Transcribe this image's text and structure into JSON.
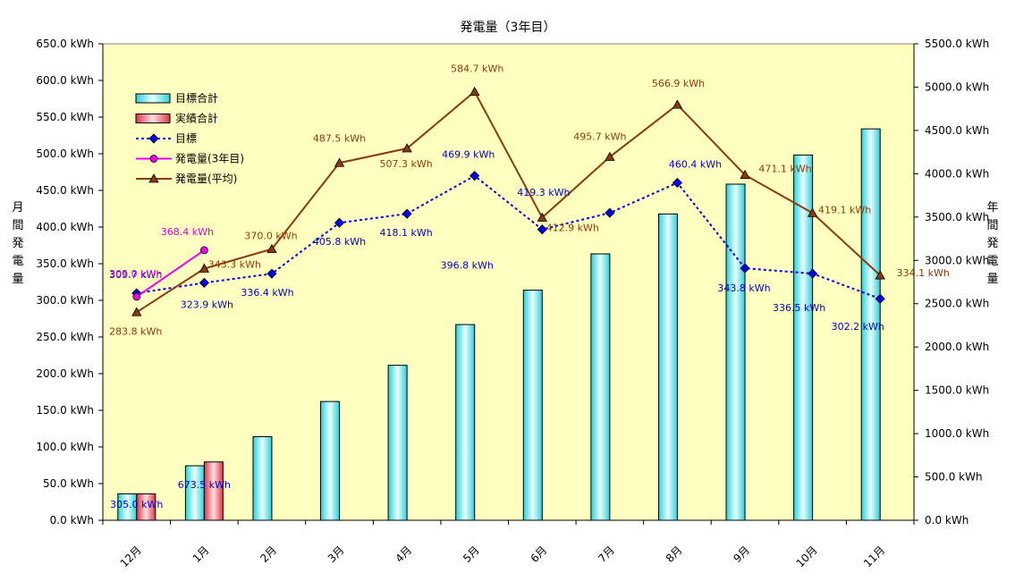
{
  "chart_data": {
    "type": "bar+line",
    "title": "発電量（3年目）",
    "left_axis_title": "月間発電量",
    "right_axis_title": "年間発電量",
    "categories": [
      "12月",
      "1月",
      "2月",
      "3月",
      "4月",
      "5月",
      "6月",
      "7月",
      "8月",
      "9月",
      "10月",
      "11月"
    ],
    "left_axis": {
      "min": 0,
      "max": 650,
      "step": 50,
      "ticks": [
        "0.0 kWh",
        "50.0 kWh",
        "100.0 kWh",
        "150.0 kWh",
        "200.0 kWh",
        "250.0 kWh",
        "300.0 kWh",
        "350.0 kWh",
        "400.0 kWh",
        "450.0 kWh",
        "500.0 kWh",
        "550.0 kWh",
        "600.0 kWh",
        "650.0 kWh"
      ]
    },
    "right_axis": {
      "min": 0,
      "max": 5500,
      "step": 500,
      "ticks": [
        "0.0 kWh",
        "500.0 kWh",
        "1000.0 kWh",
        "1500.0 kWh",
        "2000.0 kWh",
        "2500.0 kWh",
        "3000.0 kWh",
        "3500.0 kWh",
        "4000.0 kWh",
        "4500.0 kWh",
        "5000.0 kWh",
        "5500.0 kWh"
      ]
    },
    "legend_position": "top-left",
    "series": [
      {
        "name": "目標合計",
        "kind": "bar",
        "axis": "right",
        "color": "#33d6e0",
        "values": [
          305.0,
          629,
          965,
          1371,
          1789,
          2259,
          2656,
          3075,
          3536,
          3880,
          4216,
          4518
        ]
      },
      {
        "name": "実績合計",
        "kind": "bar",
        "axis": "right",
        "color": "#e05060",
        "values": [
          305.0,
          673.5,
          null,
          null,
          null,
          null,
          null,
          null,
          null,
          null,
          null,
          null
        ]
      },
      {
        "name": "目標",
        "kind": "line",
        "style": "dotted",
        "axis": "left",
        "color": "#0000ee",
        "marker": "diamond",
        "values": [
          309.7,
          323.9,
          336.4,
          405.8,
          418.1,
          469.9,
          396.8,
          419.3,
          460.4,
          343.8,
          336.5,
          302.2
        ]
      },
      {
        "name": "発電量(3年目)",
        "kind": "line",
        "axis": "left",
        "color": "#ee00ee",
        "marker": "circle",
        "values": [
          305.0,
          368.4,
          null,
          null,
          null,
          null,
          null,
          null,
          null,
          null,
          null,
          null
        ]
      },
      {
        "name": "発電量(平均)",
        "kind": "line",
        "axis": "left",
        "color": "#8b3a0a",
        "marker": "triangle",
        "values": [
          283.8,
          343.3,
          370.0,
          487.5,
          507.3,
          584.7,
          412.9,
          495.7,
          566.9,
          471.1,
          419.1,
          334.1
        ]
      }
    ],
    "data_labels": {
      "目標": [
        "309.7 kWh",
        "323.9 kWh",
        "336.4 kWh",
        "405.8 kWh",
        "418.1 kWh",
        "469.9 kWh",
        "396.8 kWh",
        "419.3 kWh",
        "460.4 kWh",
        "343.8 kWh",
        "336.5 kWh",
        "302.2 kWh"
      ],
      "発電量(3年目)": [
        "305.0 kWh",
        "368.4 kWh"
      ],
      "発電量(平均)": [
        "283.8 kWh",
        "343.3 kWh",
        "370.0 kWh",
        "487.5 kWh",
        "507.3 kWh",
        "584.7 kWh",
        "412.9 kWh",
        "495.7 kWh",
        "566.9 kWh",
        "471.1 kWh",
        "419.1 kWh",
        "334.1 kWh"
      ],
      "実績合計": [
        "305.0 kWh",
        "673.5 kWh"
      ]
    }
  }
}
